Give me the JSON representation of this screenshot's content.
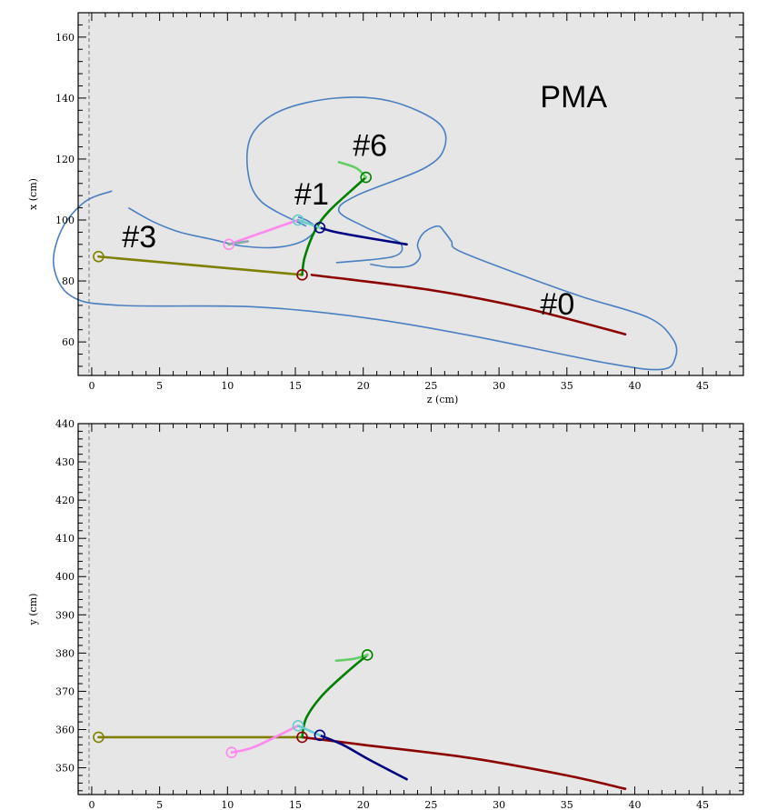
{
  "chart_data": [
    {
      "type": "line",
      "panel": "top",
      "xlabel": "z (cm)",
      "ylabel": "x (cm)",
      "xlim": [
        -1,
        48
      ],
      "ylim": [
        49,
        168
      ],
      "xticks": [
        0,
        5,
        10,
        15,
        20,
        25,
        30,
        35,
        40,
        45
      ],
      "yticks": [
        60,
        80,
        100,
        120,
        140,
        160
      ],
      "grid": false,
      "annotations": [
        {
          "text": "PMA",
          "x": 35.5,
          "y": 137
        },
        {
          "text": "#6",
          "x": 20.5,
          "y": 121
        },
        {
          "text": "#1",
          "x": 16.2,
          "y": 105
        },
        {
          "text": "#3",
          "x": 3.5,
          "y": 91
        },
        {
          "text": "#0",
          "x": 34.3,
          "y": 69
        }
      ],
      "series": [
        {
          "color": "#8b0000",
          "points": [
            [
              16.2,
              82
            ],
            [
              25,
              77
            ],
            [
              32,
              71
            ],
            [
              39.3,
              62.5
            ]
          ]
        },
        {
          "color": "#808000",
          "points": [
            [
              0.5,
              88
            ],
            [
              15.5,
              82
            ]
          ]
        },
        {
          "color": "#000080",
          "points": [
            [
              16.8,
              97.5
            ],
            [
              18,
              96
            ],
            [
              20.5,
              94
            ],
            [
              23.2,
              92
            ]
          ]
        },
        {
          "color": "#008000",
          "points": [
            [
              15.5,
              82
            ],
            [
              15.7,
              88
            ],
            [
              16.5,
              97
            ],
            [
              17.5,
              103
            ],
            [
              19.2,
              110
            ],
            [
              20.2,
              114
            ]
          ]
        },
        {
          "color": "#66cc66",
          "points": [
            [
              18.2,
              119
            ],
            [
              19.5,
              117
            ],
            [
              20.2,
              114
            ]
          ]
        },
        {
          "color": "#ff88ee",
          "points": [
            [
              10.1,
              92
            ],
            [
              12,
              95
            ],
            [
              15.2,
              100
            ]
          ]
        },
        {
          "color": "#66cccc",
          "points": [
            [
              15.2,
              100
            ],
            [
              16.8,
              97.5
            ]
          ]
        },
        {
          "color": "#88aaaa",
          "points": [
            [
              10.1,
              92
            ],
            [
              11.5,
              93
            ]
          ]
        }
      ],
      "vertices": [
        {
          "color": "#808000",
          "x": 0.5,
          "y": 88
        },
        {
          "color": "#8b0000",
          "x": 15.5,
          "y": 82
        },
        {
          "color": "#66cccc",
          "x": 15.2,
          "y": 100
        },
        {
          "color": "#000080",
          "x": 16.8,
          "y": 97.5
        },
        {
          "color": "#008000",
          "x": 20.2,
          "y": 114
        },
        {
          "color": "#ff88ee",
          "x": 10.1,
          "y": 92
        }
      ],
      "outlines": [
        {
          "color": "#4a7fc1",
          "points": [
            [
              15.8,
              98
            ],
            [
              12.5,
              106
            ],
            [
              11.5,
              116
            ],
            [
              11.8,
              128
            ],
            [
              14,
              136
            ],
            [
              18,
              140
            ],
            [
              22,
              139
            ],
            [
              25.5,
              132
            ],
            [
              26,
              124
            ],
            [
              24.5,
              117
            ],
            [
              19.5,
              108
            ],
            [
              18.2,
              103
            ],
            [
              20,
              98
            ],
            [
              21.5,
              95
            ],
            [
              22.8,
              92
            ],
            [
              22.2,
              88
            ],
            [
              18,
              86
            ]
          ]
        },
        {
          "color": "#4a7fc1",
          "points": [
            [
              2.7,
              104
            ],
            [
              4.5,
              99.5
            ],
            [
              6.5,
              96
            ],
            [
              9,
              93.5
            ],
            [
              11,
              91.5
            ],
            [
              13.5,
              91
            ],
            [
              15.5,
              93
            ],
            [
              16.5,
              97
            ],
            [
              16,
              99.5
            ],
            [
              15.2,
              101
            ]
          ]
        },
        {
          "color": "#4a7fc1",
          "points": [
            [
              1.5,
              109.5
            ],
            [
              -0.5,
              106
            ],
            [
              -2.2,
              97
            ],
            [
              -2.8,
              85
            ],
            [
              -1.5,
              75
            ],
            [
              2,
              72
            ],
            [
              12,
              71.5
            ],
            [
              20,
              68
            ],
            [
              28,
              62
            ],
            [
              38,
              53
            ],
            [
              42,
              51
            ],
            [
              43,
              55
            ],
            [
              42.8,
              61
            ],
            [
              41,
              68
            ],
            [
              36,
              75
            ],
            [
              31,
              83
            ],
            [
              27,
              90
            ],
            [
              26.5,
              93
            ],
            [
              26,
              96
            ],
            [
              25.5,
              98
            ],
            [
              24.5,
              96
            ],
            [
              24,
              92
            ],
            [
              24.2,
              88
            ],
            [
              23.5,
              85
            ],
            [
              22,
              84.5
            ],
            [
              20.5,
              85.5
            ]
          ]
        }
      ]
    },
    {
      "type": "line",
      "panel": "bottom",
      "xlabel": "",
      "ylabel": "y (cm)",
      "xlim": [
        -1,
        48
      ],
      "ylim": [
        343,
        440
      ],
      "xticks": [
        0,
        5,
        10,
        15,
        20,
        25,
        30,
        35,
        40,
        45
      ],
      "yticks": [
        350,
        360,
        370,
        380,
        390,
        400,
        410,
        420,
        430,
        440
      ],
      "grid": false,
      "series": [
        {
          "color": "#8b0000",
          "points": [
            [
              15.5,
              358
            ],
            [
              20,
              356
            ],
            [
              28,
              352.5
            ],
            [
              35,
              348
            ],
            [
              39.3,
              344.5
            ]
          ]
        },
        {
          "color": "#808000",
          "points": [
            [
              0.5,
              358
            ],
            [
              15.5,
              358
            ]
          ]
        },
        {
          "color": "#000080",
          "points": [
            [
              16.8,
              358.5
            ],
            [
              18.5,
              356
            ],
            [
              20.5,
              352
            ],
            [
              23.2,
              347
            ]
          ]
        },
        {
          "color": "#008000",
          "points": [
            [
              15.5,
              358
            ],
            [
              15.8,
              363
            ],
            [
              17,
              369
            ],
            [
              18.8,
              375
            ],
            [
              20.3,
              379.5
            ]
          ]
        },
        {
          "color": "#66cc66",
          "points": [
            [
              18,
              378
            ],
            [
              19.3,
              378.5
            ],
            [
              20.3,
              379.5
            ]
          ]
        },
        {
          "color": "#ff88ee",
          "points": [
            [
              10.3,
              354
            ],
            [
              12,
              355.5
            ],
            [
              15.2,
              361
            ]
          ]
        },
        {
          "color": "#66cccc",
          "points": [
            [
              15.2,
              361
            ],
            [
              16.8,
              358.5
            ]
          ]
        }
      ],
      "vertices": [
        {
          "color": "#808000",
          "x": 0.5,
          "y": 358
        },
        {
          "color": "#8b0000",
          "x": 15.5,
          "y": 358
        },
        {
          "color": "#66cccc",
          "x": 15.2,
          "y": 361
        },
        {
          "color": "#000080",
          "x": 16.8,
          "y": 358.5
        },
        {
          "color": "#008000",
          "x": 20.3,
          "y": 379.5
        },
        {
          "color": "#ff88ee",
          "x": 10.3,
          "y": 354
        }
      ],
      "outlines": []
    }
  ]
}
